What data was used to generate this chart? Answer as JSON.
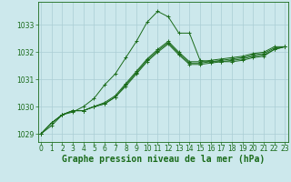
{
  "title": "Graphe pression niveau de la mer (hPa)",
  "hours": [
    0,
    1,
    2,
    3,
    4,
    5,
    6,
    7,
    8,
    9,
    10,
    11,
    12,
    13,
    14,
    15,
    16,
    17,
    18,
    19,
    20,
    21,
    22,
    23
  ],
  "series": [
    [
      1029.0,
      1029.3,
      1029.7,
      1029.8,
      1030.0,
      1030.3,
      1030.8,
      1031.2,
      1031.8,
      1032.4,
      1033.1,
      1033.5,
      1033.3,
      1032.7,
      1032.7,
      1031.7,
      1031.65,
      1031.65,
      1031.65,
      1031.7,
      1031.8,
      1031.85,
      1032.1,
      1032.2
    ],
    [
      1029.0,
      1029.4,
      1029.7,
      1029.85,
      1029.85,
      1030.0,
      1030.1,
      1030.35,
      1030.75,
      1031.2,
      1031.65,
      1032.0,
      1032.3,
      1031.9,
      1031.55,
      1031.55,
      1031.6,
      1031.65,
      1031.7,
      1031.75,
      1031.85,
      1031.9,
      1032.1,
      1032.2
    ],
    [
      1029.0,
      1029.4,
      1029.7,
      1029.85,
      1029.85,
      1030.0,
      1030.1,
      1030.35,
      1030.8,
      1031.25,
      1031.7,
      1032.05,
      1032.35,
      1031.95,
      1031.6,
      1031.6,
      1031.65,
      1031.7,
      1031.75,
      1031.8,
      1031.9,
      1031.95,
      1032.15,
      1032.2
    ],
    [
      1029.0,
      1029.4,
      1029.7,
      1029.85,
      1029.85,
      1030.0,
      1030.15,
      1030.4,
      1030.85,
      1031.3,
      1031.75,
      1032.1,
      1032.4,
      1032.0,
      1031.65,
      1031.65,
      1031.7,
      1031.75,
      1031.8,
      1031.85,
      1031.95,
      1032.0,
      1032.2,
      1032.2
    ]
  ],
  "line_color": "#1a6b1a",
  "bg_color": "#cce8ec",
  "grid_color": "#aacdd4",
  "axis_color": "#1a6b1a",
  "tick_color": "#1a6b1a",
  "ylim": [
    1028.7,
    1033.85
  ],
  "yticks": [
    1029,
    1030,
    1031,
    1032,
    1033
  ],
  "xticks": [
    0,
    1,
    2,
    3,
    4,
    5,
    6,
    7,
    8,
    9,
    10,
    11,
    12,
    13,
    14,
    15,
    16,
    17,
    18,
    19,
    20,
    21,
    22,
    23
  ],
  "title_fontsize": 7.0,
  "tick_fontsize": 5.5
}
